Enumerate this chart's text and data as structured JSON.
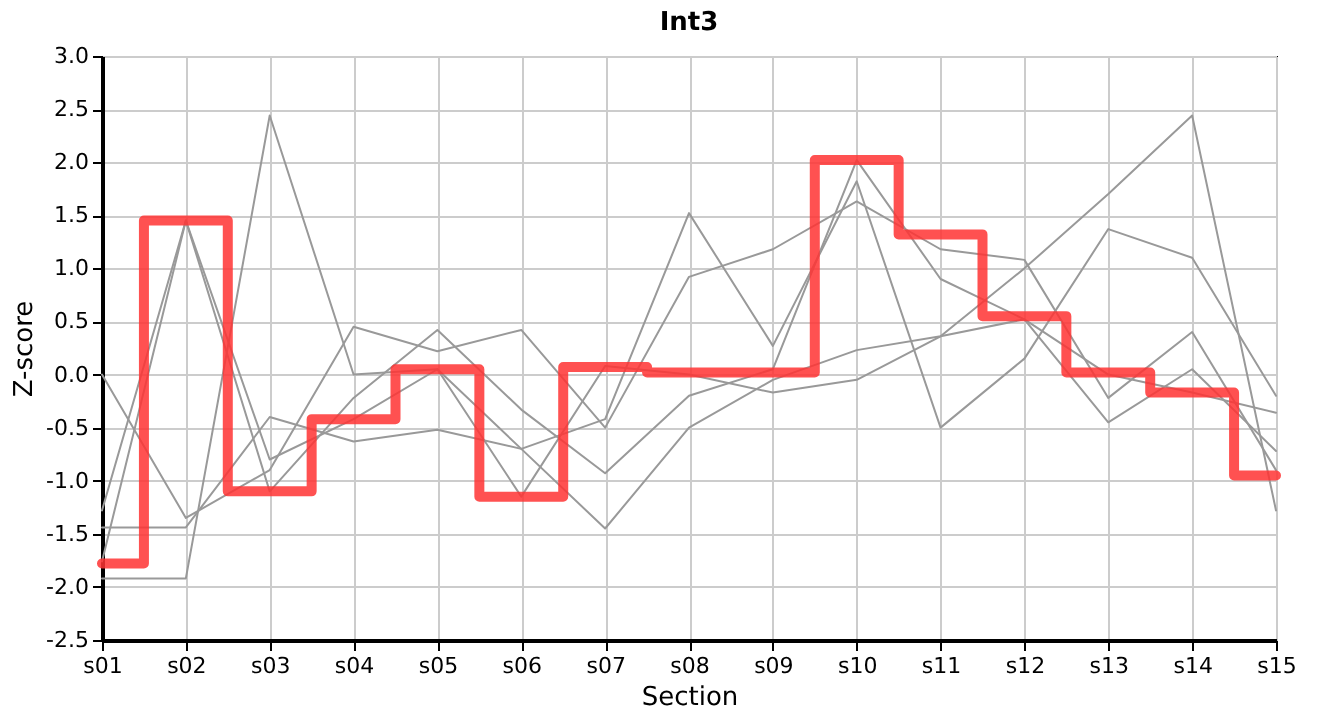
{
  "chart_data": {
    "type": "line",
    "title": "Int3",
    "xlabel": "Section",
    "ylabel": "Z-score",
    "categories": [
      "s01",
      "s02",
      "s03",
      "s04",
      "s05",
      "s06",
      "s07",
      "s08",
      "s09",
      "s10",
      "s11",
      "s12",
      "s13",
      "s14",
      "s15"
    ],
    "ylim": [
      -2.5,
      3.0
    ],
    "yticks": [
      {
        "value": -2.5,
        "label": "-2.5"
      },
      {
        "value": -2.0,
        "label": "-2.0"
      },
      {
        "value": -1.5,
        "label": "-1.5"
      },
      {
        "value": -1.0,
        "label": "-1.0"
      },
      {
        "value": -0.5,
        "label": "-0.5"
      },
      {
        "value": 0.0,
        "label": "0.0"
      },
      {
        "value": 0.5,
        "label": "0.5"
      },
      {
        "value": 1.0,
        "label": "1.0"
      },
      {
        "value": 1.5,
        "label": "1.5"
      },
      {
        "value": 2.0,
        "label": "2.0"
      },
      {
        "value": 2.5,
        "label": "2.5"
      },
      {
        "value": 3.0,
        "label": "3.0"
      }
    ],
    "grid": true,
    "series": [
      {
        "color": "#999999",
        "values": [
          -1.92,
          -1.92,
          2.44,
          0.0,
          0.05,
          -0.7,
          -0.42,
          1.52,
          0.27,
          1.82,
          -0.5,
          0.15,
          1.37,
          1.1,
          -0.2
        ]
      },
      {
        "color": "#999999",
        "values": [
          0.0,
          -1.35,
          -0.9,
          0.45,
          0.22,
          0.42,
          -0.5,
          0.92,
          1.18,
          1.63,
          1.18,
          1.08,
          -0.22,
          0.4,
          -0.9
        ]
      },
      {
        "color": "#999999",
        "values": [
          -1.28,
          1.45,
          -1.1,
          -0.22,
          0.42,
          -0.33,
          -0.93,
          -0.2,
          0.05,
          2.02,
          0.9,
          0.52,
          -0.45,
          0.05,
          -0.72
        ]
      },
      {
        "color": "#999999",
        "values": [
          -1.76,
          1.45,
          -0.8,
          -0.42,
          0.05,
          -1.15,
          0.08,
          0.0,
          -0.17,
          -0.05,
          0.36,
          1.0,
          1.7,
          2.44,
          -1.28
        ]
      },
      {
        "color": "#999999",
        "values": [
          -1.44,
          -1.44,
          -0.4,
          -0.63,
          -0.52,
          -0.7,
          -1.45,
          -0.5,
          -0.05,
          0.23,
          0.36,
          0.52,
          0.0,
          -0.17,
          -0.36
        ]
      },
      {
        "type": "step",
        "color": "#ff3333",
        "values": [
          -1.78,
          1.45,
          -1.1,
          -0.42,
          0.05,
          -1.15,
          0.07,
          0.02,
          0.02,
          2.02,
          1.32,
          0.55,
          0.02,
          -0.17,
          -0.95
        ]
      }
    ]
  }
}
